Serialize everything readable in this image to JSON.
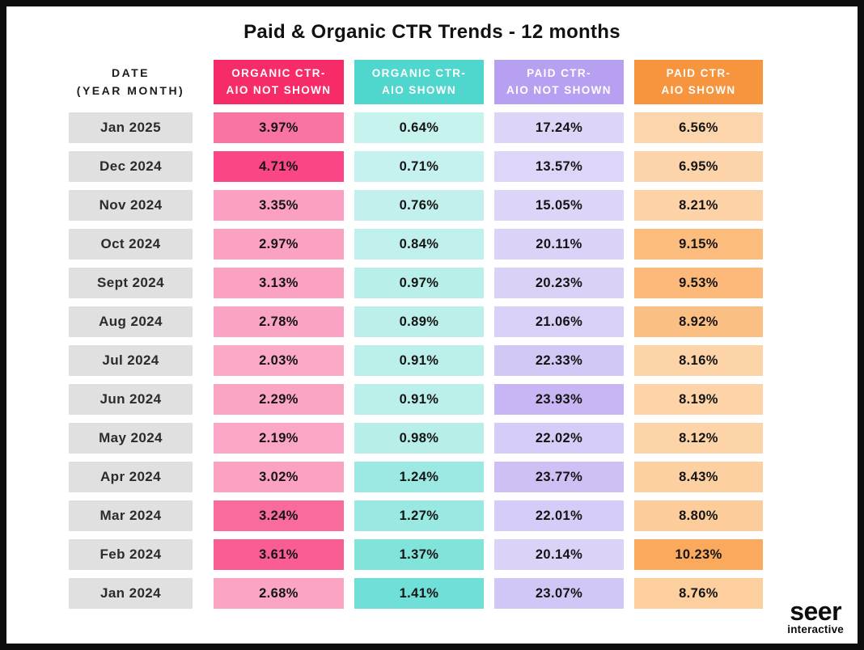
{
  "title": "Paid & Organic CTR Trends - 12 months",
  "logo": {
    "primary": "seer",
    "secondary": "interactive"
  },
  "table": {
    "date_header": {
      "line1": "DATE",
      "line2": "(YEAR MONTH)"
    },
    "date_cell_bg": "#E0E0E0",
    "columns": [
      {
        "id": "organic-ctr-aio-not-shown",
        "line1": "ORGANIC CTR-",
        "line2": "AIO NOT SHOWN",
        "color": "#F72B68"
      },
      {
        "id": "organic-ctr-aio-shown",
        "line1": "ORGANIC CTR-",
        "line2": "AIO SHOWN",
        "color": "#4FD6CD"
      },
      {
        "id": "paid-ctr-aio-not-shown",
        "line1": "PAID CTR-",
        "line2": "AIO NOT SHOWN",
        "color": "#B79FF2"
      },
      {
        "id": "paid-ctr-aio-shown",
        "line1": "PAID CTR-",
        "line2": "AIO SHOWN",
        "color": "#F7943E"
      }
    ],
    "rows": [
      {
        "date": "Jan 2025",
        "cells": [
          {
            "text": "3.97%",
            "bg": "#FA74A3"
          },
          {
            "text": "0.64%",
            "bg": "#C7F3EF"
          },
          {
            "text": "17.24%",
            "bg": "#DDD4F8"
          },
          {
            "text": "6.56%",
            "bg": "#FDD5AC"
          }
        ]
      },
      {
        "date": "Dec 2024",
        "cells": [
          {
            "text": "4.71%",
            "bg": "#FA4586"
          },
          {
            "text": "0.71%",
            "bg": "#C5F2EE"
          },
          {
            "text": "13.57%",
            "bg": "#DED6F8"
          },
          {
            "text": "6.95%",
            "bg": "#FDD4A9"
          }
        ]
      },
      {
        "date": "Nov 2024",
        "cells": [
          {
            "text": "3.35%",
            "bg": "#FBA0C2"
          },
          {
            "text": "0.76%",
            "bg": "#C2F1ED"
          },
          {
            "text": "15.05%",
            "bg": "#DDD5F8"
          },
          {
            "text": "8.21%",
            "bg": "#FDD2A6"
          }
        ]
      },
      {
        "date": "Oct 2024",
        "cells": [
          {
            "text": "2.97%",
            "bg": "#FBA2C3"
          },
          {
            "text": "0.84%",
            "bg": "#BFF0EC"
          },
          {
            "text": "20.11%",
            "bg": "#DBD2F7"
          },
          {
            "text": "9.15%",
            "bg": "#FCBC7E"
          }
        ]
      },
      {
        "date": "Sept 2024",
        "cells": [
          {
            "text": "3.13%",
            "bg": "#FBA1C2"
          },
          {
            "text": "0.97%",
            "bg": "#B8EFE9"
          },
          {
            "text": "20.23%",
            "bg": "#DBD1F7"
          },
          {
            "text": "9.53%",
            "bg": "#FCB97A"
          }
        ]
      },
      {
        "date": "Aug 2024",
        "cells": [
          {
            "text": "2.78%",
            "bg": "#FBA3C4"
          },
          {
            "text": "0.89%",
            "bg": "#BCEFEA"
          },
          {
            "text": "21.06%",
            "bg": "#D9CFF7"
          },
          {
            "text": "8.92%",
            "bg": "#FCBF83"
          }
        ]
      },
      {
        "date": "Jul 2024",
        "cells": [
          {
            "text": "2.03%",
            "bg": "#FCA8C7"
          },
          {
            "text": "0.91%",
            "bg": "#BBEFEA"
          },
          {
            "text": "22.33%",
            "bg": "#D3C7F6"
          },
          {
            "text": "8.16%",
            "bg": "#FDD3A8"
          }
        ]
      },
      {
        "date": "Jun 2024",
        "cells": [
          {
            "text": "2.29%",
            "bg": "#FBA5C5"
          },
          {
            "text": "0.91%",
            "bg": "#BBEFEA"
          },
          {
            "text": "23.93%",
            "bg": "#C8B5F4"
          },
          {
            "text": "8.19%",
            "bg": "#FDD3A7"
          }
        ]
      },
      {
        "date": "May 2024",
        "cells": [
          {
            "text": "2.19%",
            "bg": "#FBA6C6"
          },
          {
            "text": "0.98%",
            "bg": "#B7EEE8"
          },
          {
            "text": "22.02%",
            "bg": "#D6CCF7"
          },
          {
            "text": "8.12%",
            "bg": "#FDD3A8"
          }
        ]
      },
      {
        "date": "Apr 2024",
        "cells": [
          {
            "text": "3.02%",
            "bg": "#FBA2C3"
          },
          {
            "text": "1.24%",
            "bg": "#9BE9E2"
          },
          {
            "text": "23.77%",
            "bg": "#CEBFF5"
          },
          {
            "text": "8.43%",
            "bg": "#FDD0A2"
          }
        ]
      },
      {
        "date": "Mar 2024",
        "cells": [
          {
            "text": "3.24%",
            "bg": "#FA6B9D"
          },
          {
            "text": "1.27%",
            "bg": "#99E8E1"
          },
          {
            "text": "22.01%",
            "bg": "#D6CCF7"
          },
          {
            "text": "8.80%",
            "bg": "#FDCC9B"
          }
        ]
      },
      {
        "date": "Feb 2024",
        "cells": [
          {
            "text": "3.61%",
            "bg": "#FA5C94"
          },
          {
            "text": "1.37%",
            "bg": "#82E3DB"
          },
          {
            "text": "20.14%",
            "bg": "#DBD2F7"
          },
          {
            "text": "10.23%",
            "bg": "#FBA95C"
          }
        ]
      },
      {
        "date": "Jan 2024",
        "cells": [
          {
            "text": "2.68%",
            "bg": "#FBA4C4"
          },
          {
            "text": "1.41%",
            "bg": "#70DFD7"
          },
          {
            "text": "23.07%",
            "bg": "#D2C6F6"
          },
          {
            "text": "8.76%",
            "bg": "#FDCE9E"
          }
        ]
      }
    ]
  },
  "chart_data": {
    "type": "heatmap",
    "title": "Paid & Organic CTR Trends - 12 months",
    "categories": [
      "Jan 2025",
      "Dec 2024",
      "Nov 2024",
      "Oct 2024",
      "Sept 2024",
      "Aug 2024",
      "Jul 2024",
      "Jun 2024",
      "May 2024",
      "Apr 2024",
      "Mar 2024",
      "Feb 2024",
      "Jan 2024"
    ],
    "unit": "%",
    "series": [
      {
        "name": "Organic CTR - AIO Not Shown",
        "color": "#F72B68",
        "values": [
          3.97,
          4.71,
          3.35,
          2.97,
          3.13,
          2.78,
          2.03,
          2.29,
          2.19,
          3.02,
          3.24,
          3.61,
          2.68
        ]
      },
      {
        "name": "Organic CTR - AIO Shown",
        "color": "#4FD6CD",
        "values": [
          0.64,
          0.71,
          0.76,
          0.84,
          0.97,
          0.89,
          0.91,
          0.91,
          0.98,
          1.24,
          1.27,
          1.37,
          1.41
        ]
      },
      {
        "name": "Paid CTR - AIO Not Shown",
        "color": "#B79FF2",
        "values": [
          17.24,
          13.57,
          15.05,
          20.11,
          20.23,
          21.06,
          22.33,
          23.93,
          22.02,
          23.77,
          22.01,
          20.14,
          23.07
        ]
      },
      {
        "name": "Paid CTR - AIO Shown",
        "color": "#F7943E",
        "values": [
          6.56,
          6.95,
          8.21,
          9.15,
          9.53,
          8.92,
          8.16,
          8.19,
          8.12,
          8.43,
          8.8,
          10.23,
          8.76
        ]
      }
    ],
    "layout_hints": {
      "orientation": "months as rows, newest first",
      "cell_shading": "darker shade = value emphasis within column"
    }
  }
}
